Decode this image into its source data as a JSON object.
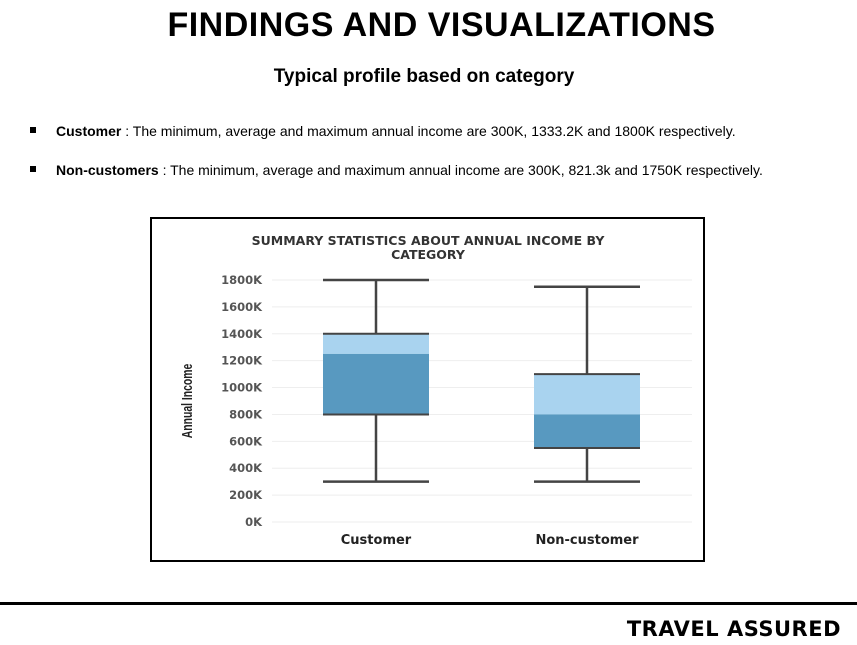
{
  "page": {
    "title": "FINDINGS AND VISUALIZATIONS",
    "subtitle": "Typical profile based on category",
    "brand": "TRAVEL ASSURED"
  },
  "bullets": [
    {
      "label": "Customer",
      "text": " : The minimum, average and maximum annual income are 300K, 1333.2K and 1800K respectively."
    },
    {
      "label": "Non-customers",
      "text": " : The minimum, average and maximum annual income are 300K, 821.3k and 1750K respectively."
    }
  ],
  "chart_data": {
    "type": "box",
    "title": "SUMMARY STATISTICS ABOUT ANNUAL INCOME BY CATEGORY",
    "xlabel": "",
    "ylabel": "Annual Income",
    "ylim": [
      0,
      1800
    ],
    "yticks": [
      0,
      200,
      400,
      600,
      800,
      1000,
      1200,
      1400,
      1600,
      1800
    ],
    "ytick_labels": [
      "0K",
      "200K",
      "400K",
      "600K",
      "800K",
      "1000K",
      "1200K",
      "1400K",
      "1600K",
      "1800K"
    ],
    "categories": [
      "Customer",
      "Non-customer"
    ],
    "boxes": [
      {
        "category": "Customer",
        "min": 300,
        "q1": 800,
        "median": 1250,
        "q3": 1400,
        "max": 1800
      },
      {
        "category": "Non-customer",
        "min": 300,
        "q1": 550,
        "median": 800,
        "q3": 1100,
        "max": 1750
      }
    ],
    "colors": {
      "lower_box": "#5899c0",
      "upper_box": "#a9d3ef",
      "whisker": "#444444",
      "grid": "#eeeeee"
    },
    "grid": true
  }
}
